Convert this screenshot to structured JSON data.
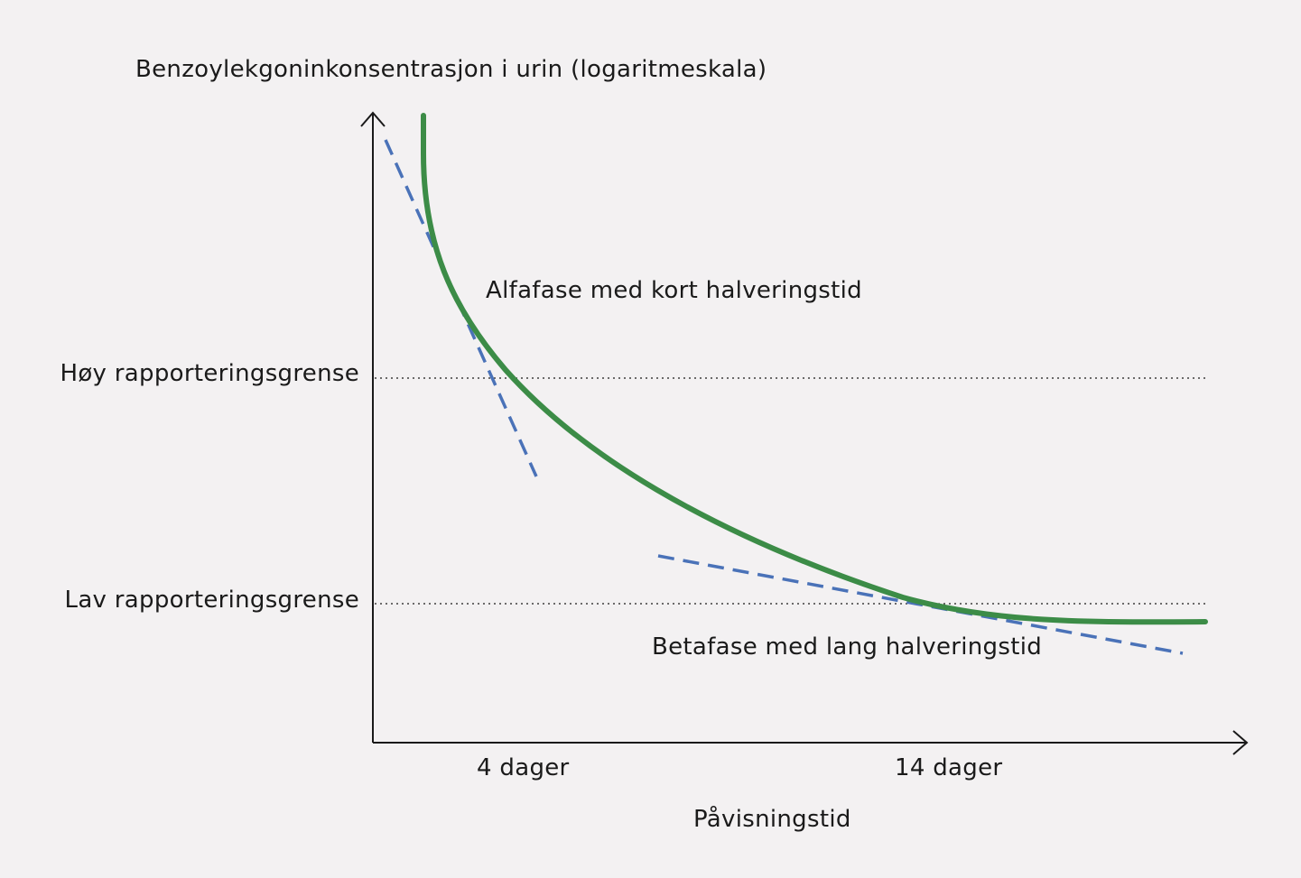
{
  "diagram": {
    "y_axis_label": "Benzoylekgoninkonsentrasjon i urin (logaritmeskala)",
    "x_axis_label": "Påvisningstid",
    "high_limit_label": "Høy rapporteringsgrense",
    "low_limit_label": "Lav rapporteringsgrense",
    "alpha_phase_label": "Alfafase med kort halveringstid",
    "beta_phase_label": "Betafase med lang halveringstid",
    "x_tick_1": "4 dager",
    "x_tick_2": "14 dager"
  },
  "colors": {
    "curve": "#3c8c47",
    "tangent": "#4a72b8",
    "axis": "#1a1a1a",
    "background": "#f3f1f2"
  }
}
